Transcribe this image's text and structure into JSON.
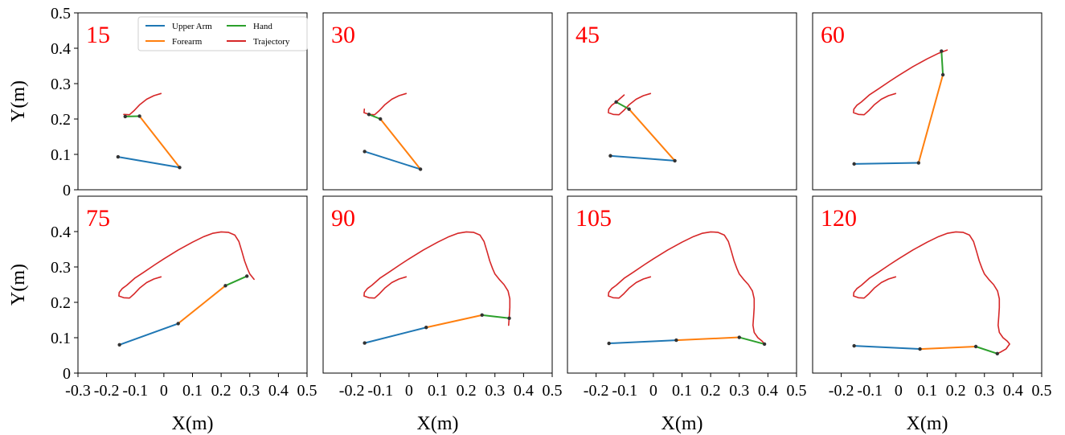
{
  "figure": {
    "legend": [
      {
        "label": "Upper Arm",
        "color": "#1f77b4"
      },
      {
        "label": "Forearm",
        "color": "#ff7f0e"
      },
      {
        "label": "Hand",
        "color": "#2ca02c"
      },
      {
        "label": "Trajectory",
        "color": "#d62728"
      }
    ],
    "frame_label_color": "#ff0000",
    "joint_color": "#333333"
  },
  "chart_data": {
    "type": "line",
    "xlabel": "X(m)",
    "ylabel": "Y(m)",
    "xlim": [
      -0.3,
      0.5
    ],
    "ylim": [
      0,
      0.5
    ],
    "xticks": [
      "-0.3",
      "-0.2",
      "-0.1",
      "0",
      "0.1",
      "0.2",
      "0.3",
      "0.4",
      "0.5"
    ],
    "yticks_top": [
      "0",
      "0.1",
      "0.2",
      "0.3",
      "0.4",
      "0.5"
    ],
    "yticks_bottom": [
      "0",
      "0.1",
      "0.2",
      "0.3",
      "0.4"
    ],
    "grid": false,
    "legend_position": "top (first panel)",
    "trajectory_path": [
      [
        -0.01,
        0.272
      ],
      [
        -0.035,
        0.266
      ],
      [
        -0.06,
        0.256
      ],
      [
        -0.085,
        0.24
      ],
      [
        -0.105,
        0.223
      ],
      [
        -0.12,
        0.212
      ],
      [
        -0.14,
        0.213
      ],
      [
        -0.157,
        0.218
      ],
      [
        -0.156,
        0.228
      ],
      [
        -0.145,
        0.239
      ],
      [
        -0.13,
        0.248
      ],
      [
        -0.102,
        0.268
      ],
      [
        -0.07,
        0.285
      ],
      [
        -0.03,
        0.307
      ],
      [
        0.0,
        0.323
      ],
      [
        0.05,
        0.348
      ],
      [
        0.1,
        0.37
      ],
      [
        0.14,
        0.386
      ],
      [
        0.17,
        0.395
      ],
      [
        0.2,
        0.399
      ],
      [
        0.225,
        0.398
      ],
      [
        0.248,
        0.39
      ],
      [
        0.262,
        0.372
      ],
      [
        0.272,
        0.345
      ],
      [
        0.282,
        0.317
      ],
      [
        0.292,
        0.295
      ],
      [
        0.3,
        0.28
      ],
      [
        0.315,
        0.265
      ],
      [
        0.332,
        0.25
      ],
      [
        0.346,
        0.232
      ],
      [
        0.352,
        0.21
      ],
      [
        0.352,
        0.185
      ],
      [
        0.35,
        0.16
      ],
      [
        0.348,
        0.135
      ],
      [
        0.352,
        0.115
      ],
      [
        0.365,
        0.1
      ],
      [
        0.38,
        0.09
      ],
      [
        0.388,
        0.082
      ],
      [
        0.375,
        0.068
      ],
      [
        0.358,
        0.06
      ],
      [
        0.345,
        0.055
      ]
    ],
    "frames": [
      {
        "frame": "15",
        "reveal": 6,
        "joints": [
          [
            -0.16,
            0.093
          ],
          [
            0.055,
            0.063
          ],
          [
            -0.085,
            0.208
          ],
          [
            -0.135,
            0.207
          ]
        ]
      },
      {
        "frame": "30",
        "reveal": 8,
        "joints": [
          [
            -0.155,
            0.108
          ],
          [
            0.04,
            0.058
          ],
          [
            -0.1,
            0.2
          ],
          [
            -0.14,
            0.213
          ]
        ]
      },
      {
        "frame": "45",
        "reveal": 11,
        "joints": [
          [
            -0.15,
            0.096
          ],
          [
            0.075,
            0.082
          ],
          [
            -0.085,
            0.228
          ],
          [
            -0.13,
            0.248
          ]
        ]
      },
      {
        "frame": "60",
        "reveal": 18,
        "joints": [
          [
            -0.155,
            0.073
          ],
          [
            0.07,
            0.076
          ],
          [
            0.155,
            0.325
          ],
          [
            0.15,
            0.392
          ]
        ]
      },
      {
        "frame": "75",
        "reveal": 27,
        "joints": [
          [
            -0.155,
            0.08
          ],
          [
            0.05,
            0.14
          ],
          [
            0.215,
            0.247
          ],
          [
            0.29,
            0.274
          ]
        ]
      },
      {
        "frame": "90",
        "reveal": 33,
        "joints": [
          [
            -0.155,
            0.085
          ],
          [
            0.06,
            0.129
          ],
          [
            0.255,
            0.164
          ],
          [
            0.35,
            0.155
          ]
        ]
      },
      {
        "frame": "105",
        "reveal": 37,
        "joints": [
          [
            -0.155,
            0.084
          ],
          [
            0.08,
            0.093
          ],
          [
            0.3,
            0.101
          ],
          [
            0.388,
            0.082
          ]
        ]
      },
      {
        "frame": "120",
        "reveal": 40,
        "joints": [
          [
            -0.155,
            0.077
          ],
          [
            0.075,
            0.068
          ],
          [
            0.27,
            0.075
          ],
          [
            0.345,
            0.055
          ]
        ]
      }
    ]
  }
}
